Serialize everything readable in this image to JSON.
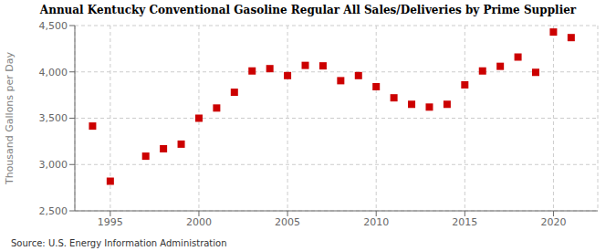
{
  "chart_data": {
    "type": "scatter",
    "title": "Annual Kentucky Conventional Gasoline Regular All Sales/Deliveries by Prime Supplier",
    "ylabel": "Thousand Gallons per Day",
    "annotations": [
      "Source: U.S. Energy Information Administration"
    ],
    "x": [
      1994,
      1995,
      1997,
      1998,
      1999,
      2000,
      2001,
      2002,
      2003,
      2004,
      2005,
      2006,
      2007,
      2008,
      2009,
      2010,
      2011,
      2012,
      2013,
      2014,
      2015,
      2016,
      2017,
      2018,
      2019,
      2020,
      2021
    ],
    "values": [
      3415,
      2820,
      3090,
      3170,
      3220,
      3500,
      3610,
      3780,
      4010,
      4035,
      3960,
      4070,
      4065,
      3905,
      3960,
      3840,
      3720,
      3650,
      3620,
      3650,
      3860,
      4010,
      4060,
      4160,
      3995,
      4430,
      4370
    ],
    "color": "#cc0000",
    "marker": "square",
    "xlim": [
      1993.0,
      2022.5
    ],
    "ylim": [
      2500,
      4500
    ],
    "xticks": [
      1995,
      2000,
      2005,
      2010,
      2015,
      2020
    ],
    "yticks": [
      {
        "value": 2500,
        "label": "2,500"
      },
      {
        "value": 3000,
        "label": "3,000"
      },
      {
        "value": 3500,
        "label": "3,500"
      },
      {
        "value": 4000,
        "label": "4,000"
      },
      {
        "value": 4500,
        "label": "4,500"
      }
    ],
    "grid": true
  }
}
